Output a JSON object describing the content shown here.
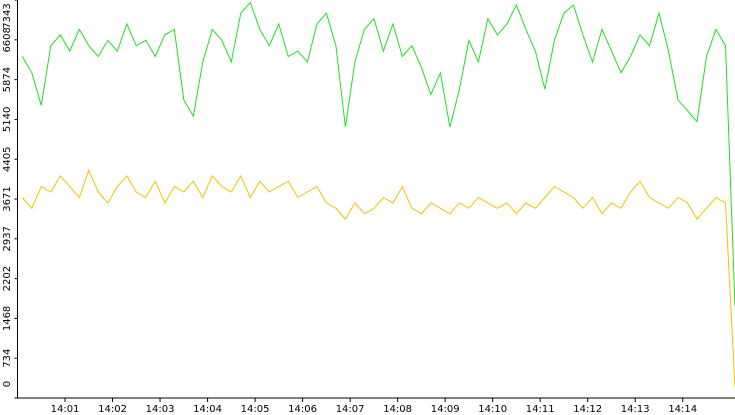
{
  "chart_data": {
    "type": "line",
    "x": [
      0.1,
      0.3,
      0.5,
      0.7,
      0.9,
      1.1,
      1.3,
      1.5,
      1.7,
      1.9,
      2.1,
      2.3,
      2.5,
      2.7,
      2.9,
      3.1,
      3.3,
      3.5,
      3.7,
      3.9,
      4.1,
      4.3,
      4.5,
      4.7,
      4.9,
      5.1,
      5.3,
      5.5,
      5.7,
      5.9,
      6.1,
      6.3,
      6.5,
      6.7,
      6.9,
      7.1,
      7.3,
      7.5,
      7.7,
      7.9,
      8.1,
      8.3,
      8.5,
      8.7,
      8.9,
      9.1,
      9.3,
      9.5,
      9.7,
      9.9,
      10.1,
      10.3,
      10.5,
      10.7,
      10.9,
      11.1,
      11.3,
      11.5,
      11.7,
      11.9,
      12.1,
      12.3,
      12.5,
      12.7,
      12.9,
      13.1,
      13.3,
      13.5,
      13.7,
      13.9,
      14.1,
      14.3,
      14.5,
      14.7,
      14.9,
      15.1
    ],
    "series": [
      {
        "color": "#22e022",
        "values": [
          6300,
          6000,
          5400,
          6500,
          6700,
          6400,
          6800,
          6500,
          6300,
          6600,
          6400,
          6900,
          6500,
          6600,
          6300,
          6700,
          6800,
          5500,
          5200,
          6200,
          6800,
          6600,
          6200,
          7100,
          7300,
          6800,
          6500,
          6900,
          6300,
          6400,
          6200,
          6900,
          7100,
          6500,
          5000,
          6200,
          6800,
          7000,
          6400,
          6900,
          6300,
          6500,
          6100,
          5600,
          6000,
          5000,
          5700,
          6600,
          6200,
          7000,
          6700,
          6900,
          7250,
          6800,
          6400,
          5700,
          6600,
          7100,
          7250,
          6700,
          6200,
          6800,
          6400,
          6000,
          6300,
          6700,
          6500,
          7100,
          6400,
          5500,
          5300,
          5100,
          6300,
          6800,
          6500,
          1700
        ]
      },
      {
        "color": "#f2c200",
        "values": [
          3700,
          3500,
          3900,
          3800,
          4100,
          3900,
          3700,
          4200,
          3800,
          3600,
          3900,
          4100,
          3800,
          3700,
          4000,
          3600,
          3900,
          3800,
          4000,
          3700,
          4100,
          3900,
          3800,
          4100,
          3700,
          4000,
          3800,
          3900,
          4000,
          3700,
          3800,
          3900,
          3600,
          3500,
          3300,
          3600,
          3400,
          3500,
          3700,
          3600,
          3900,
          3500,
          3400,
          3600,
          3500,
          3400,
          3600,
          3500,
          3700,
          3600,
          3500,
          3600,
          3400,
          3600,
          3500,
          3700,
          3900,
          3800,
          3700,
          3500,
          3700,
          3400,
          3600,
          3500,
          3800,
          4000,
          3700,
          3600,
          3500,
          3700,
          3600,
          3300,
          3500,
          3700,
          3600,
          200
        ]
      }
    ],
    "xlim": [
      0,
      15.1
    ],
    "xticks": [
      {
        "value": 1,
        "label": "14:01"
      },
      {
        "value": 2,
        "label": "14:02"
      },
      {
        "value": 3,
        "label": "14:03"
      },
      {
        "value": 4,
        "label": "14:04"
      },
      {
        "value": 5,
        "label": "14:05"
      },
      {
        "value": 6,
        "label": "14:06"
      },
      {
        "value": 7,
        "label": "14:07"
      },
      {
        "value": 8,
        "label": "14:08"
      },
      {
        "value": 9,
        "label": "14:09"
      },
      {
        "value": 10,
        "label": "14:10"
      },
      {
        "value": 11,
        "label": "14:11"
      },
      {
        "value": 12,
        "label": "14:12"
      },
      {
        "value": 13,
        "label": "14:13"
      },
      {
        "value": 14,
        "label": "14:14"
      }
    ],
    "ylim": [
      0,
      7343
    ],
    "yticks": [
      0,
      734,
      1468,
      2202,
      2937,
      3671,
      4405,
      5140,
      5874,
      6608,
      7343
    ],
    "grid": false
  }
}
